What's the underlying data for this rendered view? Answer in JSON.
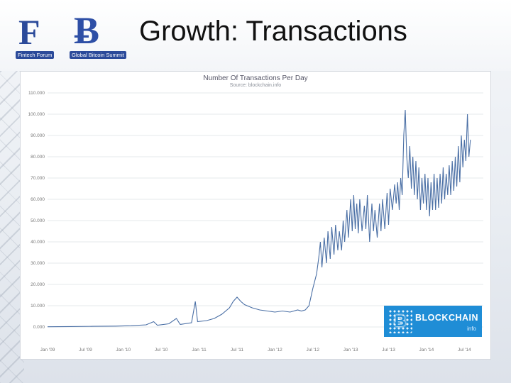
{
  "slide": {
    "title": "Growth: Transactions"
  },
  "logos": {
    "left_mark": "F",
    "left_caption": "Fintech Forum",
    "right_mark": "Ƀ",
    "right_caption": "Global Bitcoin Summit"
  },
  "watermark": {
    "name": "BLOCKCHAIN",
    "sub": "info",
    "icon": "bitcoin-cube-icon"
  },
  "chart_data": {
    "type": "line",
    "title": "Number Of Transactions Per Day",
    "subtitle": "Source: blockchain.info",
    "xlabel": "",
    "ylabel": "",
    "ylim": [
      0,
      110000
    ],
    "yticks": [
      {
        "value": 0,
        "label": "0.000"
      },
      {
        "value": 10000,
        "label": "10.000"
      },
      {
        "value": 20000,
        "label": "20.000"
      },
      {
        "value": 30000,
        "label": "30.000"
      },
      {
        "value": 40000,
        "label": "40.000"
      },
      {
        "value": 50000,
        "label": "50.000"
      },
      {
        "value": 60000,
        "label": "60.000"
      },
      {
        "value": 70000,
        "label": "70.000"
      },
      {
        "value": 80000,
        "label": "80.000"
      },
      {
        "value": 90000,
        "label": "90.000"
      },
      {
        "value": 100000,
        "label": "100.000"
      },
      {
        "value": 110000,
        "label": "110.000"
      }
    ],
    "xlim": [
      2009.0,
      2014.75
    ],
    "xticks": [
      {
        "value": 2009.0,
        "label": "Jan '09"
      },
      {
        "value": 2009.5,
        "label": "Jul '09"
      },
      {
        "value": 2010.0,
        "label": "Jan '10"
      },
      {
        "value": 2010.5,
        "label": "Jul '10"
      },
      {
        "value": 2011.0,
        "label": "Jan '11"
      },
      {
        "value": 2011.5,
        "label": "Jul '11"
      },
      {
        "value": 2012.0,
        "label": "Jan '12"
      },
      {
        "value": 2012.5,
        "label": "Jul '12"
      },
      {
        "value": 2013.0,
        "label": "Jan '13"
      },
      {
        "value": 2013.5,
        "label": "Jul '13"
      },
      {
        "value": 2014.0,
        "label": "Jan '14"
      },
      {
        "value": 2014.5,
        "label": "Jul '14"
      }
    ],
    "grid": true,
    "line_color": "#4a6fa5",
    "series": [
      {
        "values": [
          [
            2009.0,
            100
          ],
          [
            2009.3,
            200
          ],
          [
            2009.6,
            300
          ],
          [
            2009.9,
            400
          ],
          [
            2010.1,
            600
          ],
          [
            2010.3,
            1000
          ],
          [
            2010.4,
            2500
          ],
          [
            2010.45,
            800
          ],
          [
            2010.6,
            1500
          ],
          [
            2010.7,
            4000
          ],
          [
            2010.75,
            1200
          ],
          [
            2010.9,
            2000
          ],
          [
            2010.95,
            12000
          ],
          [
            2010.98,
            2500
          ],
          [
            2011.1,
            3000
          ],
          [
            2011.2,
            4000
          ],
          [
            2011.3,
            6000
          ],
          [
            2011.4,
            9000
          ],
          [
            2011.45,
            12000
          ],
          [
            2011.5,
            14000
          ],
          [
            2011.55,
            12000
          ],
          [
            2011.6,
            10500
          ],
          [
            2011.7,
            9000
          ],
          [
            2011.8,
            8000
          ],
          [
            2011.9,
            7500
          ],
          [
            2012.0,
            7000
          ],
          [
            2012.1,
            7500
          ],
          [
            2012.2,
            7000
          ],
          [
            2012.3,
            8000
          ],
          [
            2012.35,
            7500
          ],
          [
            2012.4,
            8000
          ],
          [
            2012.45,
            10000
          ],
          [
            2012.5,
            18000
          ],
          [
            2012.55,
            25000
          ],
          [
            2012.58,
            33000
          ],
          [
            2012.6,
            40000
          ],
          [
            2012.62,
            28000
          ],
          [
            2012.65,
            42000
          ],
          [
            2012.68,
            30000
          ],
          [
            2012.7,
            45000
          ],
          [
            2012.73,
            32000
          ],
          [
            2012.75,
            47000
          ],
          [
            2012.78,
            34000
          ],
          [
            2012.8,
            48000
          ],
          [
            2012.83,
            36000
          ],
          [
            2012.85,
            45000
          ],
          [
            2012.88,
            36000
          ],
          [
            2012.9,
            50000
          ],
          [
            2012.92,
            40000
          ],
          [
            2012.95,
            55000
          ],
          [
            2012.97,
            42000
          ],
          [
            2013.0,
            60000
          ],
          [
            2013.02,
            45000
          ],
          [
            2013.04,
            62000
          ],
          [
            2013.06,
            46000
          ],
          [
            2013.08,
            58000
          ],
          [
            2013.1,
            44000
          ],
          [
            2013.12,
            60000
          ],
          [
            2013.15,
            45000
          ],
          [
            2013.18,
            57000
          ],
          [
            2013.2,
            46000
          ],
          [
            2013.22,
            62000
          ],
          [
            2013.25,
            40000
          ],
          [
            2013.28,
            58000
          ],
          [
            2013.3,
            45000
          ],
          [
            2013.32,
            55000
          ],
          [
            2013.35,
            42000
          ],
          [
            2013.38,
            58000
          ],
          [
            2013.4,
            45000
          ],
          [
            2013.42,
            60000
          ],
          [
            2013.45,
            46000
          ],
          [
            2013.48,
            63000
          ],
          [
            2013.5,
            48000
          ],
          [
            2013.52,
            65000
          ],
          [
            2013.55,
            55000
          ],
          [
            2013.58,
            67000
          ],
          [
            2013.6,
            58000
          ],
          [
            2013.62,
            68000
          ],
          [
            2013.64,
            55000
          ],
          [
            2013.66,
            70000
          ],
          [
            2013.68,
            62000
          ],
          [
            2013.7,
            90000
          ],
          [
            2013.72,
            102000
          ],
          [
            2013.74,
            80000
          ],
          [
            2013.76,
            70000
          ],
          [
            2013.78,
            85000
          ],
          [
            2013.8,
            65000
          ],
          [
            2013.82,
            80000
          ],
          [
            2013.84,
            62000
          ],
          [
            2013.86,
            78000
          ],
          [
            2013.88,
            60000
          ],
          [
            2013.9,
            75000
          ],
          [
            2013.92,
            55000
          ],
          [
            2013.94,
            70000
          ],
          [
            2013.96,
            58000
          ],
          [
            2013.98,
            72000
          ],
          [
            2014.0,
            55000
          ],
          [
            2014.02,
            70000
          ],
          [
            2014.04,
            52000
          ],
          [
            2014.06,
            68000
          ],
          [
            2014.08,
            55000
          ],
          [
            2014.1,
            72000
          ],
          [
            2014.12,
            55000
          ],
          [
            2014.14,
            70000
          ],
          [
            2014.16,
            56000
          ],
          [
            2014.18,
            72000
          ],
          [
            2014.2,
            58000
          ],
          [
            2014.22,
            75000
          ],
          [
            2014.24,
            60000
          ],
          [
            2014.26,
            72000
          ],
          [
            2014.28,
            62000
          ],
          [
            2014.3,
            76000
          ],
          [
            2014.32,
            62000
          ],
          [
            2014.34,
            78000
          ],
          [
            2014.36,
            64000
          ],
          [
            2014.38,
            80000
          ],
          [
            2014.4,
            66000
          ],
          [
            2014.42,
            85000
          ],
          [
            2014.44,
            68000
          ],
          [
            2014.46,
            90000
          ],
          [
            2014.48,
            75000
          ],
          [
            2014.5,
            88000
          ],
          [
            2014.52,
            78000
          ],
          [
            2014.54,
            100000
          ],
          [
            2014.56,
            80000
          ],
          [
            2014.58,
            88000
          ]
        ]
      }
    ]
  }
}
